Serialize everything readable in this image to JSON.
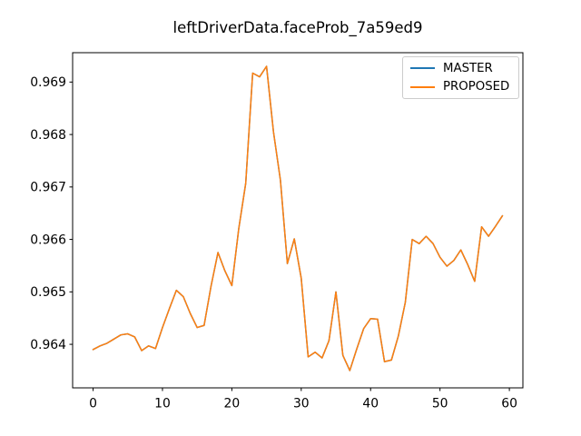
{
  "chart_data": {
    "type": "line",
    "title": "leftDriverData.faceProb_7a59ed9",
    "xlabel": "",
    "ylabel": "",
    "grid": false,
    "legend_position": "upper right",
    "xlim": [
      -2.95,
      61.95
    ],
    "ylim": [
      0.96317,
      0.96956
    ],
    "xticks": [
      0,
      10,
      20,
      30,
      40,
      50,
      60
    ],
    "xtick_labels": [
      "0",
      "10",
      "20",
      "30",
      "40",
      "50",
      "60"
    ],
    "yticks": [
      0.964,
      0.965,
      0.966,
      0.967,
      0.968,
      0.969
    ],
    "ytick_labels": [
      "0.964",
      "0.965",
      "0.966",
      "0.967",
      "0.968",
      "0.969"
    ],
    "x": [
      0,
      1,
      2,
      3,
      4,
      5,
      6,
      7,
      8,
      9,
      10,
      11,
      12,
      13,
      14,
      15,
      16,
      17,
      18,
      19,
      20,
      21,
      22,
      23,
      24,
      25,
      26,
      27,
      28,
      29,
      30,
      31,
      32,
      33,
      34,
      35,
      36,
      37,
      38,
      39,
      40,
      41,
      42,
      43,
      44,
      45,
      46,
      47,
      48,
      49,
      50,
      51,
      52,
      53,
      54,
      55,
      56,
      57,
      58,
      59
    ],
    "series": [
      {
        "name": "MASTER",
        "color": "#1f77b4",
        "values": [
          0.9639,
          0.96397,
          0.96402,
          0.9641,
          0.96418,
          0.9642,
          0.96414,
          0.96388,
          0.96397,
          0.96392,
          0.96432,
          0.96468,
          0.96503,
          0.96491,
          0.96459,
          0.96432,
          0.96436,
          0.96511,
          0.96575,
          0.9654,
          0.96512,
          0.96621,
          0.96707,
          0.96917,
          0.9691,
          0.9693,
          0.96805,
          0.96713,
          0.96554,
          0.96601,
          0.96526,
          0.96376,
          0.96385,
          0.96374,
          0.96407,
          0.965,
          0.96379,
          0.9635,
          0.96391,
          0.9643,
          0.96449,
          0.96448,
          0.96367,
          0.9637,
          0.96416,
          0.9648,
          0.966,
          0.96592,
          0.96606,
          0.96592,
          0.96566,
          0.96549,
          0.9656,
          0.9658,
          0.96552,
          0.9652,
          0.96624,
          0.96606,
          0.96625,
          0.96645
        ]
      },
      {
        "name": "PROPOSED",
        "color": "#ff7f0e",
        "values": [
          0.9639,
          0.96397,
          0.96402,
          0.9641,
          0.96418,
          0.9642,
          0.96414,
          0.96388,
          0.96397,
          0.96392,
          0.96432,
          0.96468,
          0.96503,
          0.96491,
          0.96459,
          0.96432,
          0.96436,
          0.96511,
          0.96575,
          0.9654,
          0.96512,
          0.96621,
          0.96707,
          0.96917,
          0.9691,
          0.9693,
          0.96805,
          0.96713,
          0.96554,
          0.96601,
          0.96526,
          0.96376,
          0.96385,
          0.96374,
          0.96407,
          0.965,
          0.96379,
          0.9635,
          0.96391,
          0.9643,
          0.96449,
          0.96448,
          0.96367,
          0.9637,
          0.96416,
          0.9648,
          0.966,
          0.96592,
          0.96606,
          0.96592,
          0.96566,
          0.96549,
          0.9656,
          0.9658,
          0.96552,
          0.9652,
          0.96624,
          0.96606,
          0.96625,
          0.96645
        ]
      }
    ],
    "axis_color": "#000000",
    "background_color": "#ffffff",
    "legend_border_color": "#cccccc"
  }
}
